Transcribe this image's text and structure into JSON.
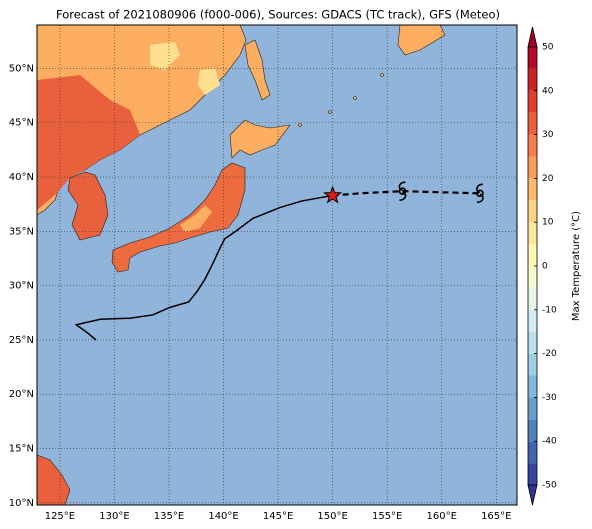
{
  "chart_data": {
    "type": "map",
    "title": "Forecast of 2021080906 (f000-006), Sources: GDACS (TC track), GFS (Meteo)",
    "xlim": [
      122.9,
      166.9
    ],
    "ylim": [
      9.8,
      54
    ],
    "xticks": [
      {
        "value": 125,
        "label": "125°E"
      },
      {
        "value": 130,
        "label": "130°E"
      },
      {
        "value": 135,
        "label": "135°E"
      },
      {
        "value": 140,
        "label": "140°E"
      },
      {
        "value": 145,
        "label": "145°E"
      },
      {
        "value": 150,
        "label": "150°E"
      },
      {
        "value": 155,
        "label": "155°E"
      },
      {
        "value": 160,
        "label": "160°E"
      },
      {
        "value": 165,
        "label": "165°E"
      }
    ],
    "yticks": [
      {
        "value": 10,
        "label": "10°N"
      },
      {
        "value": 15,
        "label": "15°N"
      },
      {
        "value": 20,
        "label": "20°N"
      },
      {
        "value": 25,
        "label": "25°N"
      },
      {
        "value": 30,
        "label": "30°N"
      },
      {
        "value": 35,
        "label": "35°N"
      },
      {
        "value": 40,
        "label": "40°N"
      },
      {
        "value": 45,
        "label": "45°N"
      },
      {
        "value": 50,
        "label": "50°N"
      }
    ],
    "grid": true,
    "track": {
      "lon": [
        128.3,
        127.6,
        126.5,
        128.7,
        131.4,
        133.5,
        135.1,
        136.8,
        137.6,
        138.3,
        139.0,
        139.6,
        140.1,
        141.1,
        142.7,
        145.2,
        147.2,
        150.0
      ],
      "lat": [
        25.0,
        25.6,
        26.4,
        26.9,
        27.0,
        27.3,
        28.0,
        28.5,
        29.5,
        30.6,
        32.0,
        33.3,
        34.3,
        35.0,
        36.2,
        37.2,
        37.8,
        38.3
      ]
    },
    "forecast": {
      "lon": [
        150.0,
        152.5,
        156.4,
        159.9,
        163.5
      ],
      "lat": [
        38.3,
        38.5,
        38.7,
        38.6,
        38.5
      ]
    },
    "colorbar": {
      "label": "Max Temperature (°C)",
      "clim": [
        -50,
        50
      ],
      "ticks": [
        -50,
        -40,
        -30,
        -20,
        -10,
        0,
        10,
        20,
        30,
        40,
        50
      ]
    }
  }
}
